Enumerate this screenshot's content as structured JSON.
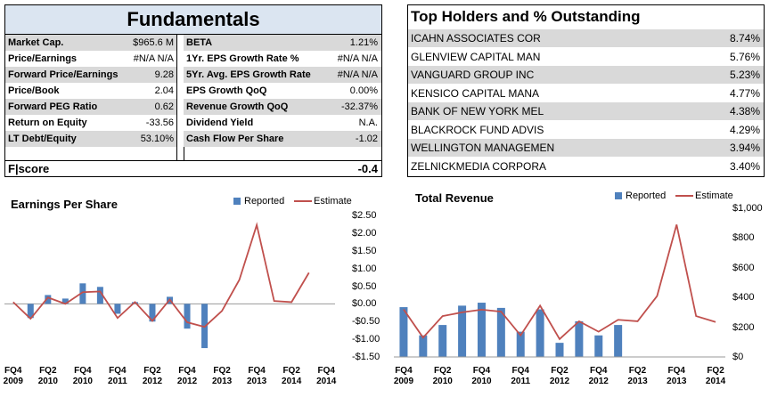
{
  "fundamentals": {
    "title": "Fundamentals",
    "rows": [
      [
        "Market Cap.",
        "$965.6 M",
        "BETA",
        "1.21%"
      ],
      [
        "Price/Earnings",
        "#N/A N/A",
        "1Yr. EPS Growth Rate %",
        "#N/A N/A"
      ],
      [
        "Forward Price/Earnings",
        "9.28",
        "5Yr. Avg. EPS Growth Rate %",
        "#N/A N/A"
      ],
      [
        "Price/Book",
        "2.04",
        "EPS Growth QoQ",
        "0.00%"
      ],
      [
        "Forward PEG Ratio",
        "0.62",
        "Revenue Growth QoQ",
        "-32.37%"
      ],
      [
        "Return on Equity",
        "-33.56",
        "Dividend Yield",
        "N.A."
      ],
      [
        "LT Debt/Equity",
        "53.10%",
        "Cash Flow Per Share",
        "-1.02"
      ]
    ],
    "fscore_label": "F|score",
    "fscore": "-0.4"
  },
  "holders": {
    "title": "Top Holders and % Outstanding",
    "rows": [
      [
        "ICAHN ASSOCIATES COR",
        "8.74%"
      ],
      [
        "GLENVIEW CAPITAL MAN",
        "5.76%"
      ],
      [
        "VANGUARD GROUP INC",
        "5.23%"
      ],
      [
        "KENSICO CAPITAL MANA",
        "4.77%"
      ],
      [
        "BANK OF NEW YORK MEL",
        "4.38%"
      ],
      [
        "BLACKROCK FUND ADVIS",
        "4.29%"
      ],
      [
        "WELLINGTON MANAGEMEN",
        "3.94%"
      ],
      [
        "ZELNICKMEDIA CORPORA",
        "3.40%"
      ]
    ]
  },
  "chart_data": [
    {
      "type": "combo",
      "title": "Earnings Per Share",
      "categories": [
        "FQ4 2009",
        null,
        "FQ2 2010",
        null,
        "FQ4 2010",
        null,
        "FQ4 2011",
        null,
        "FQ2 2012",
        null,
        "FQ4 2012",
        null,
        "FQ2 2013",
        null,
        "FQ4 2013",
        null,
        "FQ2 2014",
        null,
        "FQ4 2014"
      ],
      "series": [
        {
          "name": "Reported",
          "kind": "bar",
          "color": "#4f81bd",
          "values": [
            null,
            -0.4,
            0.25,
            0.15,
            0.58,
            0.48,
            -0.28,
            0.05,
            -0.5,
            0.2,
            -0.7,
            -1.25,
            null,
            null,
            null,
            null,
            null,
            null,
            null
          ]
        },
        {
          "name": "Estimate",
          "kind": "line",
          "color": "#c0504d",
          "values": [
            0.05,
            -0.42,
            0.18,
            0.0,
            0.33,
            0.35,
            -0.4,
            0.05,
            -0.48,
            0.12,
            -0.52,
            -0.65,
            -0.2,
            0.68,
            2.23,
            0.08,
            0.05,
            0.88,
            null
          ]
        }
      ],
      "ylim": [
        -1.5,
        2.5
      ],
      "yticks": [
        {
          "value": -1.5,
          "label": "-$1.50"
        },
        {
          "value": -1.0,
          "label": "-$1.00"
        },
        {
          "value": -0.5,
          "label": "-$0.50"
        },
        {
          "value": 0,
          "label": "$0.00"
        },
        {
          "value": 0.5,
          "label": "$0.50"
        },
        {
          "value": 1.0,
          "label": "$1.00"
        },
        {
          "value": 1.5,
          "label": "$1.50"
        },
        {
          "value": 2.0,
          "label": "$2.00"
        },
        {
          "value": 2.5,
          "label": "$2.50"
        }
      ]
    },
    {
      "type": "combo",
      "title": "Total Revenue",
      "categories": [
        "FQ4 2009",
        null,
        "FQ2 2010",
        null,
        "FQ4 2010",
        null,
        "FQ4 2011",
        null,
        "FQ2 2012",
        null,
        "FQ4 2012",
        null,
        "FQ2 2013",
        null,
        "FQ4 2013",
        null,
        "FQ2 2014"
      ],
      "series": [
        {
          "name": "Reported",
          "kind": "bar",
          "color": "#4f81bd",
          "values": [
            335,
            145,
            215,
            345,
            365,
            330,
            170,
            320,
            95,
            240,
            145,
            215,
            null,
            null,
            null,
            null,
            null
          ]
        },
        {
          "name": "Estimate",
          "kind": "line",
          "color": "#c0504d",
          "values": [
            320,
            130,
            275,
            300,
            318,
            305,
            145,
            345,
            120,
            240,
            170,
            250,
            240,
            410,
            890,
            275,
            235
          ]
        }
      ],
      "ylim": [
        0,
        1000
      ],
      "yticks": [
        {
          "value": 0,
          "label": "$0"
        },
        {
          "value": 200,
          "label": "$200"
        },
        {
          "value": 400,
          "label": "$400"
        },
        {
          "value": 600,
          "label": "$600"
        },
        {
          "value": 800,
          "label": "$800"
        },
        {
          "value": 1000,
          "label": "$1,000"
        }
      ]
    }
  ]
}
